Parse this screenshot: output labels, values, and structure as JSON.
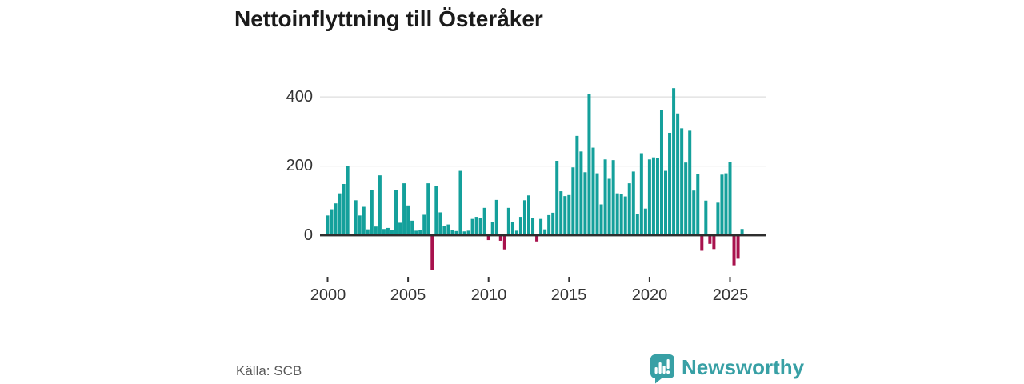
{
  "title": "Nettoinflyttning till Österåker",
  "source": "Källa: SCB",
  "brand": {
    "name": "Newsworthy"
  },
  "colors": {
    "positive_bar": "#14a09b",
    "negative_bar": "#a8124d",
    "grid_line": "#dcdcdc",
    "zero_line": "#2e2e2e",
    "axis_text": "#333333",
    "title_text": "#1b1b1b",
    "source_text": "#595959",
    "brand_teal": "#38a0a5"
  },
  "chart_data": {
    "type": "bar",
    "title": "Nettoinflyttning till Österåker",
    "xlabel": "",
    "ylabel": "",
    "frequency": "quarterly",
    "start_period": "2000Q1",
    "end_period": "2025Q4",
    "grid": true,
    "ylim": [
      -115,
      440
    ],
    "y_ticks": [
      0,
      200,
      400
    ],
    "y_tick_labels": [
      "0",
      "200",
      "400"
    ],
    "x_tick_years": [
      2000,
      2005,
      2010,
      2015,
      2020,
      2025
    ],
    "x_tick_labels": [
      "2000",
      "2005",
      "2010",
      "2015",
      "2020",
      "2025"
    ],
    "values": [
      57,
      75,
      92,
      121,
      148,
      200,
      2,
      101,
      57,
      82,
      17,
      130,
      25,
      173,
      18,
      21,
      15,
      131,
      36,
      150,
      86,
      42,
      13,
      15,
      59,
      150,
      -100,
      143,
      66,
      26,
      31,
      15,
      12,
      186,
      11,
      13,
      47,
      53,
      50,
      79,
      -14,
      38,
      102,
      -16,
      -41,
      79,
      37,
      13,
      53,
      101,
      115,
      49,
      -18,
      47,
      17,
      58,
      65,
      215,
      127,
      113,
      116,
      196,
      287,
      242,
      182,
      409,
      253,
      179,
      89,
      219,
      163,
      217,
      121,
      120,
      112,
      150,
      184,
      62,
      237,
      77,
      219,
      225,
      222,
      362,
      186,
      296,
      425,
      352,
      309,
      210,
      302,
      129,
      177,
      -45,
      100,
      -25,
      -40,
      94,
      175,
      179,
      212,
      -87,
      -68,
      18
    ]
  },
  "layout_meta": {
    "note": "quarterly net migration bars; teal positive, crimson negative"
  }
}
